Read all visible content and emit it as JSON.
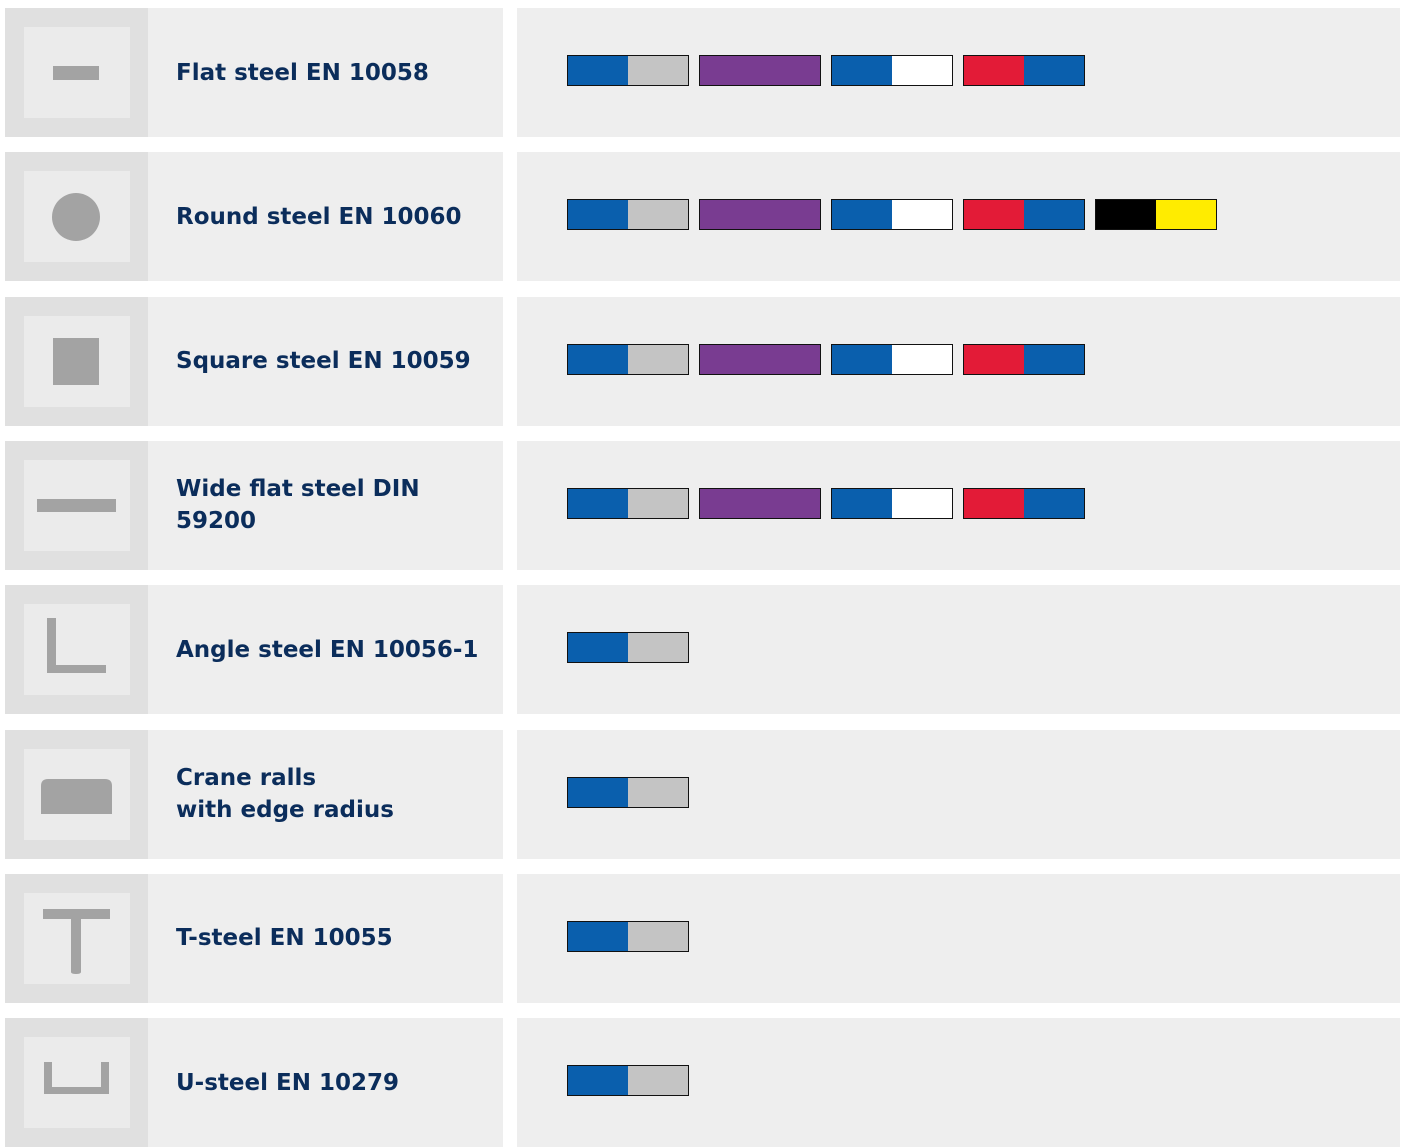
{
  "table": {
    "rows": [
      {
        "label": "Flat steel EN 10058",
        "swatches": [
          [
            "#0a5fad",
            "#c4c4c4"
          ],
          [
            "#793c91",
            "#793c91"
          ],
          [
            "#0a5fad",
            "#ffffff"
          ],
          [
            "#e31b37",
            "#0a5fad"
          ]
        ]
      },
      {
        "label": "Round steel EN 10060",
        "swatches": [
          [
            "#0a5fad",
            "#c4c4c4"
          ],
          [
            "#793c91",
            "#793c91"
          ],
          [
            "#0a5fad",
            "#ffffff"
          ],
          [
            "#e31b37",
            "#0a5fad"
          ],
          [
            "#000000",
            "#ffec00"
          ]
        ]
      },
      {
        "label": "Square steel EN 10059",
        "swatches": [
          [
            "#0a5fad",
            "#c4c4c4"
          ],
          [
            "#793c91",
            "#793c91"
          ],
          [
            "#0a5fad",
            "#ffffff"
          ],
          [
            "#e31b37",
            "#0a5fad"
          ]
        ]
      },
      {
        "label": "Wide flat steel DIN 59200",
        "swatches": [
          [
            "#0a5fad",
            "#c4c4c4"
          ],
          [
            "#793c91",
            "#793c91"
          ],
          [
            "#0a5fad",
            "#ffffff"
          ],
          [
            "#e31b37",
            "#0a5fad"
          ]
        ]
      },
      {
        "label": "Angle steel EN 10056-1",
        "swatches": [
          [
            "#0a5fad",
            "#c4c4c4"
          ]
        ]
      },
      {
        "label": "Crane ralls\nwith edge radius",
        "swatches": [
          [
            "#0a5fad",
            "#c4c4c4"
          ]
        ]
      },
      {
        "label": "T-steel EN 10055",
        "swatches": [
          [
            "#0a5fad",
            "#c4c4c4"
          ]
        ]
      },
      {
        "label": "U-steel EN 10279",
        "swatches": [
          [
            "#0a5fad",
            "#c4c4c4"
          ]
        ]
      }
    ]
  }
}
